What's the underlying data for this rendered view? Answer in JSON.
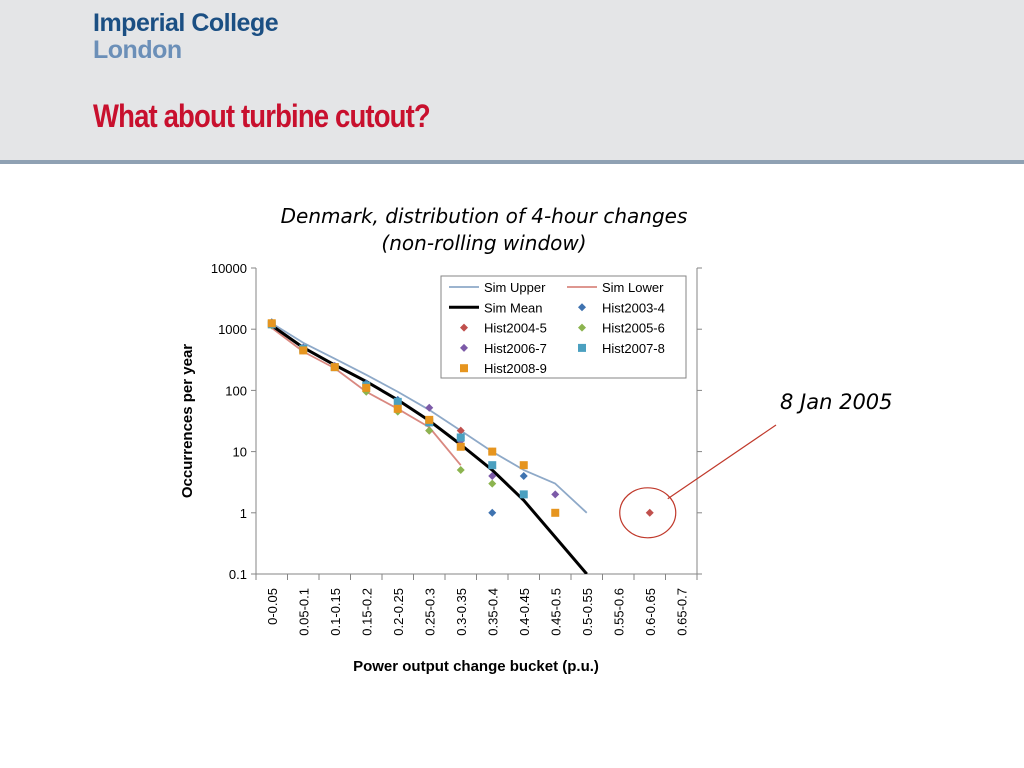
{
  "header": {
    "logo_line1": "Imperial College",
    "logo_line2": "London",
    "title": "What about turbine cutout?"
  },
  "annotation": {
    "text": "8 Jan 2005"
  },
  "chart_data": {
    "type": "line",
    "title": "Denmark, distribution of 4-hour changes",
    "subtitle": "(non-rolling window)",
    "xlabel": "Power output change bucket (p.u.)",
    "ylabel": "Occurrences per year",
    "yscale": "log",
    "ylim": [
      0.1,
      10000
    ],
    "yticks": [
      "0.1",
      "1",
      "10",
      "100",
      "1000",
      "10000"
    ],
    "grid": false,
    "legend": "top-right",
    "categories": [
      "0-0.05",
      "0.05-0.1",
      "0.1-0.15",
      "0.15-0.2",
      "0.2-0.25",
      "0.25-0.3",
      "0.3-0.35",
      "0.35-0.4",
      "0.4-0.45",
      "0.45-0.5",
      "0.5-0.55",
      "0.55-0.6",
      "0.6-0.65",
      "0.65-0.7"
    ],
    "series": [
      {
        "name": "Sim Upper",
        "kind": "line",
        "color": "#8ea9c8",
        "values": [
          1250,
          600,
          330,
          180,
          95,
          48,
          22,
          10,
          5,
          3,
          1,
          null,
          null,
          null
        ]
      },
      {
        "name": "Sim Lower",
        "kind": "line",
        "color": "#d98880",
        "values": [
          1050,
          430,
          230,
          95,
          50,
          25,
          6,
          null,
          null,
          null,
          null,
          null,
          null,
          null
        ]
      },
      {
        "name": "Sim Mean",
        "kind": "line",
        "color": "#000000",
        "width": 3,
        "values": [
          1150,
          500,
          260,
          140,
          70,
          32,
          13,
          5,
          1.6,
          0.4,
          0.1,
          null,
          null,
          null
        ]
      },
      {
        "name": "Hist2003-4",
        "kind": "diamond",
        "color": "#3f73b0",
        "values": [
          1300,
          500,
          250,
          130,
          70,
          30,
          17,
          1,
          4,
          null,
          null,
          null,
          null,
          null
        ]
      },
      {
        "name": "Hist2004-5",
        "kind": "diamond",
        "color": "#c0504d",
        "values": [
          1250,
          450,
          240,
          110,
          65,
          22,
          22,
          10,
          null,
          null,
          null,
          null,
          1,
          null
        ]
      },
      {
        "name": "Hist2005-6",
        "kind": "diamond",
        "color": "#8cb44f",
        "values": [
          1150,
          480,
          240,
          95,
          45,
          22,
          5,
          3,
          null,
          null,
          null,
          null,
          null,
          null
        ]
      },
      {
        "name": "Hist2006-7",
        "kind": "diamond",
        "color": "#7c5aa8",
        "values": [
          1200,
          500,
          250,
          120,
          60,
          52,
          15,
          4,
          null,
          2,
          null,
          null,
          null,
          null
        ]
      },
      {
        "name": "Hist2007-8",
        "kind": "square",
        "color": "#4ba0c0",
        "values": [
          1200,
          480,
          240,
          120,
          65,
          30,
          17,
          6,
          2,
          null,
          null,
          null,
          null,
          null
        ]
      },
      {
        "name": "Hist2008-9",
        "kind": "square",
        "color": "#e6951f",
        "values": [
          1250,
          450,
          240,
          110,
          50,
          33,
          12,
          10,
          6,
          1,
          null,
          null,
          null,
          null
        ]
      }
    ]
  }
}
